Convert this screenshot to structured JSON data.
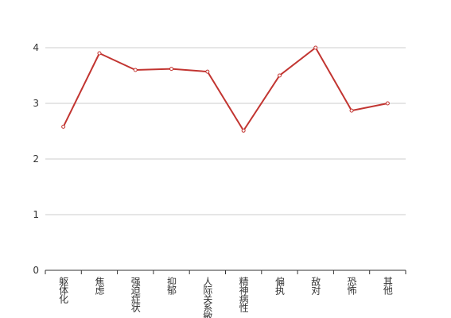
{
  "chart_data": {
    "type": "line",
    "categories": [
      "躯体化",
      "焦虑",
      "强迫症状",
      "抑郁",
      "人际关系敏感",
      "精神病性",
      "偏执",
      "敌对",
      "恐怖",
      "其他"
    ],
    "values": [
      2.58,
      3.9,
      3.6,
      3.62,
      3.57,
      2.51,
      3.5,
      4.0,
      2.87,
      3.0
    ],
    "color": "#c23531",
    "ylim": [
      0,
      4
    ],
    "yticks": [
      0,
      1,
      2,
      3,
      4
    ],
    "grid": true
  }
}
